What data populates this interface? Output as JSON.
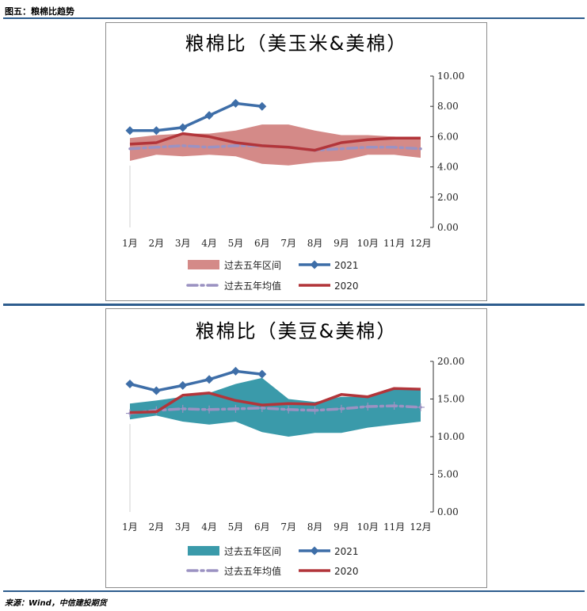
{
  "page_title": "图五：粮棉比趋势",
  "source": "来源：Wind，中信建投期货",
  "chart_data": [
    {
      "type": "line",
      "title": "粮棉比（美玉米&美棉）",
      "categories": [
        "1月",
        "2月",
        "3月",
        "4月",
        "5月",
        "6月",
        "7月",
        "8月",
        "9月",
        "10月",
        "11月",
        "12月"
      ],
      "y_ticks": [
        "10.00",
        "8.00",
        "6.00",
        "4.00",
        "2.00",
        "0.00"
      ],
      "ylim": [
        0,
        10
      ],
      "band": {
        "name": "过去五年区间",
        "color": "#d48a88",
        "low": [
          4.4,
          4.8,
          4.7,
          4.8,
          4.7,
          4.2,
          4.1,
          4.3,
          4.4,
          4.8,
          4.8,
          4.6
        ],
        "high": [
          5.9,
          6.1,
          6.2,
          6.2,
          6.4,
          6.8,
          6.8,
          6.4,
          6.1,
          6.1,
          6.0,
          5.9
        ]
      },
      "series": [
        {
          "name": "2021",
          "color": "#3e6ea8",
          "values": [
            6.4,
            6.4,
            6.6,
            7.4,
            8.2,
            8.0,
            null,
            null,
            null,
            null,
            null,
            null
          ]
        },
        {
          "name": "过去五年均值",
          "color": "#9b92c2",
          "values": [
            5.2,
            5.3,
            5.4,
            5.3,
            5.4,
            5.4,
            5.3,
            5.1,
            5.2,
            5.3,
            5.3,
            5.2
          ]
        },
        {
          "name": "2020",
          "color": "#b2353a",
          "values": [
            5.5,
            5.6,
            6.2,
            6.0,
            5.6,
            5.4,
            5.3,
            5.1,
            5.6,
            5.8,
            5.9,
            5.9
          ]
        }
      ],
      "legend": [
        "过去五年区间",
        "2021",
        "过去五年均值",
        "2020"
      ]
    },
    {
      "type": "line",
      "title": "粮棉比（美豆&美棉）",
      "categories": [
        "1月",
        "2月",
        "3月",
        "4月",
        "5月",
        "6月",
        "7月",
        "8月",
        "9月",
        "10月",
        "11月",
        "12月"
      ],
      "y_ticks": [
        "20.00",
        "15.00",
        "10.00",
        "5.00",
        "0.00"
      ],
      "ylim": [
        0,
        20
      ],
      "band": {
        "name": "过去五年区间",
        "color": "#3a9aaa",
        "low": [
          12.3,
          12.8,
          12.0,
          11.6,
          12.0,
          10.6,
          10.0,
          10.5,
          10.5,
          11.2,
          11.6,
          12.0
        ],
        "high": [
          14.4,
          14.8,
          15.3,
          15.8,
          17.0,
          17.8,
          15.0,
          14.6,
          15.3,
          15.3,
          16.5,
          16.4
        ]
      },
      "series": [
        {
          "name": "2021",
          "color": "#3e6ea8",
          "values": [
            17.0,
            16.1,
            16.8,
            17.6,
            18.7,
            18.3,
            null,
            null,
            null,
            null,
            null,
            null
          ]
        },
        {
          "name": "过去五年均值",
          "color": "#9b92c2",
          "values": [
            13.1,
            13.5,
            13.7,
            13.6,
            13.7,
            13.8,
            13.6,
            13.5,
            13.7,
            14.0,
            14.1,
            13.9
          ]
        },
        {
          "name": "2020",
          "color": "#b2353a",
          "values": [
            13.2,
            13.3,
            15.5,
            15.8,
            14.8,
            14.2,
            14.4,
            14.3,
            15.6,
            15.3,
            16.4,
            16.3
          ]
        }
      ],
      "legend": [
        "过去五年区间",
        "2021",
        "过去五年均值",
        "2020"
      ]
    }
  ]
}
